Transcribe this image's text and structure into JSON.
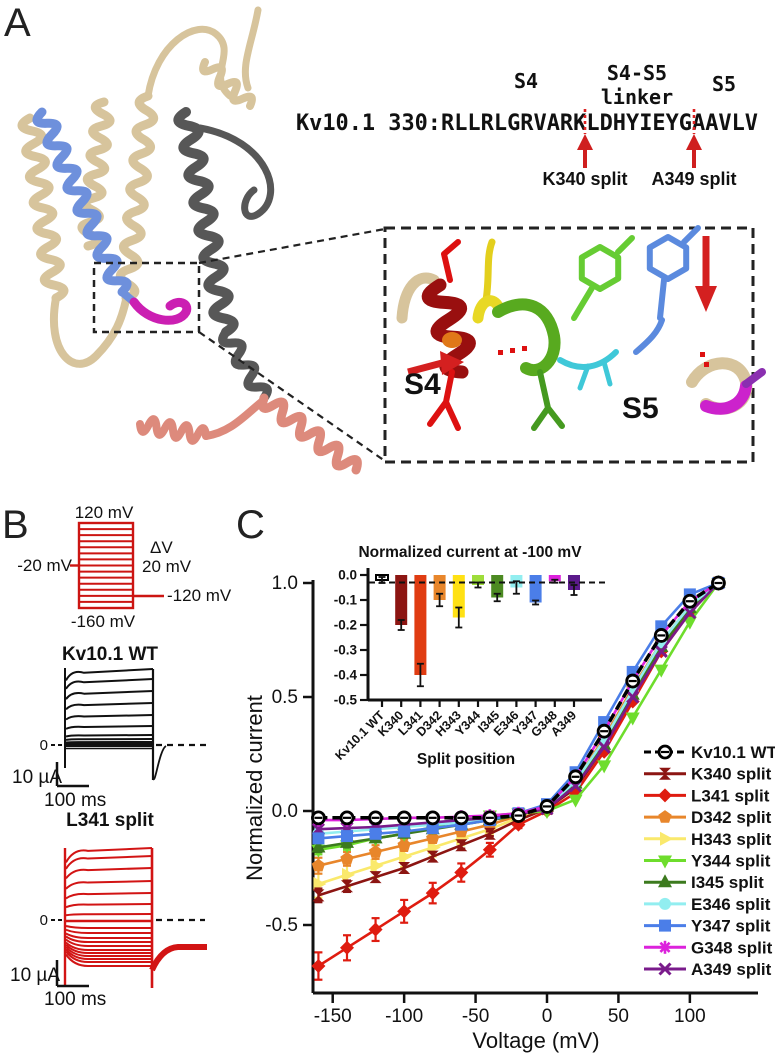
{
  "figure": {
    "panel_a_label": "A",
    "panel_b_label": "B",
    "panel_c_label": "C"
  },
  "panel_a": {
    "sequence": {
      "prefix": "Kv10.1 330:",
      "s4_segment": "RLLRLGRVARKLDH",
      "linker_segment": "YIEYG",
      "post_segment": "AAVLV"
    },
    "labels": {
      "s4": "S4",
      "linker_line1": "S4-S5",
      "linker_line2": "linker",
      "s5": "S5",
      "split1": "K340 split",
      "split2": "A349 split"
    },
    "inset_labels": {
      "s4": "S4",
      "s5": "S5"
    },
    "colors": {
      "tan": "#d7c49c",
      "s4_blue": "#6e90dc",
      "s5_gray": "#575757",
      "linker_magenta": "#cb1fb2",
      "salmon": "#dd8a7c",
      "seq_blue": "#8099e0",
      "seq_magenta": "#d619ac",
      "seq_dark": "#2e2e2e",
      "arrow_red": "#cf1f1f"
    }
  },
  "panel_b": {
    "protocol": {
      "top_label": "120 mV",
      "holding_label": "-20 mV",
      "delta_label": "ΔV",
      "step_label": "20 mV",
      "tail_label": "-120 mV",
      "bottom_label": "-160 mV",
      "color": "#cc1512"
    },
    "wt_trace": {
      "title": "Kv10.1 WT",
      "zero_label": "0",
      "current_scale": "10 µA",
      "time_scale": "100 ms",
      "color": "#111111"
    },
    "split_trace": {
      "title": "L341 split",
      "zero_label": "0",
      "current_scale": "10 µA",
      "time_scale": "100 ms",
      "color": "#d21414"
    }
  },
  "chart_data": [
    {
      "type": "line",
      "title": "",
      "xlabel": "Voltage (mV)",
      "ylabel": "Normalized current",
      "xticks": [
        -150,
        -100,
        -50,
        0,
        50,
        100
      ],
      "yticks": [
        1.0,
        0.5,
        0.0,
        -0.5
      ],
      "xlim": [
        -164,
        148
      ],
      "ylim": [
        -0.8,
        1.09
      ],
      "grid": false,
      "legend_position": "right",
      "x": [
        -160,
        -140,
        -120,
        -100,
        -80,
        -60,
        -40,
        -20,
        0,
        20,
        40,
        60,
        80,
        100,
        120
      ],
      "series": [
        {
          "name": "Kv10.1 WT",
          "marker": "open-circle",
          "color": "#000000",
          "dashed": true,
          "values": [
            -0.03,
            -0.03,
            -0.03,
            -0.03,
            -0.03,
            -0.03,
            -0.03,
            -0.02,
            0.02,
            0.15,
            0.35,
            0.57,
            0.77,
            0.92,
            1.0
          ],
          "err": [
            0,
            0,
            0,
            0,
            0,
            0,
            0,
            0,
            0,
            0,
            0,
            0,
            0,
            0,
            0
          ]
        },
        {
          "name": "K340 split",
          "marker": "bowtie",
          "color": "#8c1512",
          "dashed": false,
          "values": [
            -0.37,
            -0.33,
            -0.29,
            -0.25,
            -0.2,
            -0.15,
            -0.1,
            -0.04,
            0.01,
            0.1,
            0.28,
            0.5,
            0.71,
            0.88,
            1.0
          ],
          "err": [
            0.03,
            0.025,
            0.02,
            0.02,
            0.02,
            0.015,
            0.01,
            0,
            0,
            0,
            0,
            0,
            0,
            0,
            0
          ]
        },
        {
          "name": "L341 split",
          "marker": "diamond",
          "color": "#df1c10",
          "dashed": false,
          "values": [
            -0.68,
            -0.6,
            -0.52,
            -0.44,
            -0.36,
            -0.27,
            -0.17,
            -0.06,
            0.0,
            0.08,
            0.26,
            0.48,
            0.7,
            0.87,
            1.0
          ],
          "err": [
            0.06,
            0.055,
            0.05,
            0.05,
            0.045,
            0.04,
            0.03,
            0.015,
            0,
            0,
            0,
            0,
            0,
            0,
            0
          ]
        },
        {
          "name": "D342 split",
          "marker": "pentagon",
          "color": "#e8862b",
          "dashed": false,
          "values": [
            -0.24,
            -0.21,
            -0.18,
            -0.15,
            -0.12,
            -0.09,
            -0.06,
            -0.02,
            0.02,
            0.13,
            0.32,
            0.54,
            0.74,
            0.9,
            1.0
          ],
          "err": [
            0.035,
            0.03,
            0.03,
            0.025,
            0.02,
            0.015,
            0.01,
            0,
            0,
            0,
            0,
            0,
            0,
            0,
            0
          ]
        },
        {
          "name": "H343 split",
          "marker": "triangle-right",
          "color": "#fae96c",
          "dashed": false,
          "values": [
            -0.32,
            -0.28,
            -0.24,
            -0.2,
            -0.16,
            -0.12,
            -0.08,
            -0.03,
            0.01,
            0.12,
            0.31,
            0.53,
            0.74,
            0.9,
            1.0
          ],
          "err": [
            0.06,
            0.055,
            0.05,
            0.045,
            0.04,
            0.03,
            0.02,
            0.01,
            0,
            0,
            0,
            0,
            0,
            0,
            0
          ]
        },
        {
          "name": "Y344 split",
          "marker": "triangle-down",
          "color": "#6edd2c",
          "dashed": false,
          "values": [
            -0.17,
            -0.15,
            -0.12,
            -0.1,
            -0.07,
            -0.04,
            -0.02,
            -0.01,
            0.0,
            0.05,
            0.2,
            0.41,
            0.62,
            0.83,
            1.0
          ],
          "err": [
            0.02,
            0.02,
            0.015,
            0.015,
            0.01,
            0.01,
            0,
            0,
            0,
            0,
            0,
            0,
            0,
            0,
            0
          ]
        },
        {
          "name": "I345 split",
          "marker": "triangle-up",
          "color": "#3c7a1e",
          "dashed": false,
          "values": [
            -0.16,
            -0.14,
            -0.12,
            -0.1,
            -0.08,
            -0.06,
            -0.04,
            -0.02,
            0.02,
            0.12,
            0.29,
            0.51,
            0.72,
            0.89,
            1.0
          ],
          "err": [
            0.02,
            0.02,
            0.015,
            0.015,
            0.01,
            0.01,
            0,
            0,
            0,
            0,
            0,
            0,
            0,
            0,
            0
          ]
        },
        {
          "name": "E346 split",
          "marker": "circle",
          "color": "#92eef0",
          "dashed": false,
          "values": [
            -0.1,
            -0.09,
            -0.08,
            -0.07,
            -0.06,
            -0.05,
            -0.03,
            -0.015,
            0.02,
            0.13,
            0.31,
            0.53,
            0.74,
            0.9,
            1.0
          ],
          "err": [
            0.025,
            0.02,
            0.02,
            0.015,
            0.015,
            0.01,
            0,
            0,
            0,
            0,
            0,
            0,
            0,
            0,
            0
          ]
        },
        {
          "name": "Y347 split",
          "marker": "square",
          "color": "#4b7ee8",
          "dashed": false,
          "values": [
            -0.12,
            -0.11,
            -0.1,
            -0.09,
            -0.075,
            -0.06,
            -0.04,
            -0.01,
            0.03,
            0.17,
            0.39,
            0.61,
            0.81,
            0.95,
            1.0
          ],
          "err": [
            0.015,
            0.015,
            0.01,
            0.01,
            0.01,
            0,
            0,
            0,
            0,
            0,
            0,
            0,
            0,
            0,
            0
          ]
        },
        {
          "name": "G348 split",
          "marker": "asterisk",
          "color": "#dc22dc",
          "dashed": false,
          "values": [
            -0.04,
            -0.04,
            -0.035,
            -0.03,
            -0.03,
            -0.025,
            -0.02,
            -0.01,
            0.02,
            0.15,
            0.35,
            0.57,
            0.77,
            0.92,
            1.0
          ],
          "err": [
            0,
            0,
            0,
            0,
            0,
            0,
            0,
            0,
            0,
            0,
            0,
            0,
            0,
            0,
            0
          ]
        },
        {
          "name": "A349 split",
          "marker": "x",
          "color": "#7a1b8b",
          "dashed": false,
          "values": [
            -0.08,
            -0.075,
            -0.07,
            -0.06,
            -0.05,
            -0.04,
            -0.03,
            -0.015,
            0.01,
            0.11,
            0.28,
            0.5,
            0.7,
            0.87,
            1.0
          ],
          "err": [
            0.02,
            0.015,
            0.015,
            0.01,
            0.01,
            0,
            0,
            0,
            0,
            0,
            0,
            0,
            0,
            0,
            0
          ]
        }
      ]
    },
    {
      "type": "bar",
      "title": "Normalized current at -100 mV",
      "xlabel": "Split position",
      "ylabel": "",
      "categories": [
        "Kv10.1 WT",
        "K340",
        "L341",
        "D342",
        "H343",
        "Y344",
        "I345",
        "E346",
        "Y347",
        "G348",
        "A349"
      ],
      "values": [
        -0.02,
        -0.2,
        -0.4,
        -0.1,
        -0.17,
        -0.04,
        -0.09,
        -0.05,
        -0.11,
        -0.025,
        -0.06
      ],
      "errors": [
        0.012,
        0.02,
        0.045,
        0.025,
        0.04,
        0.01,
        0.015,
        0.025,
        0.008,
        0.006,
        0.02
      ],
      "bar_colors": [
        "#ffffff",
        "#8c1512",
        "#e03c12",
        "#e8862b",
        "#ffe114",
        "#9edd3a",
        "#4c8a22",
        "#92eef0",
        "#4b7ee8",
        "#dc22dc",
        "#5b1a8b"
      ],
      "yticks": [
        0.0,
        -0.1,
        -0.2,
        -0.3,
        -0.4,
        -0.5
      ],
      "ylim": [
        -0.5,
        0.0
      ],
      "reference_line_y": -0.03,
      "grid": false
    }
  ]
}
